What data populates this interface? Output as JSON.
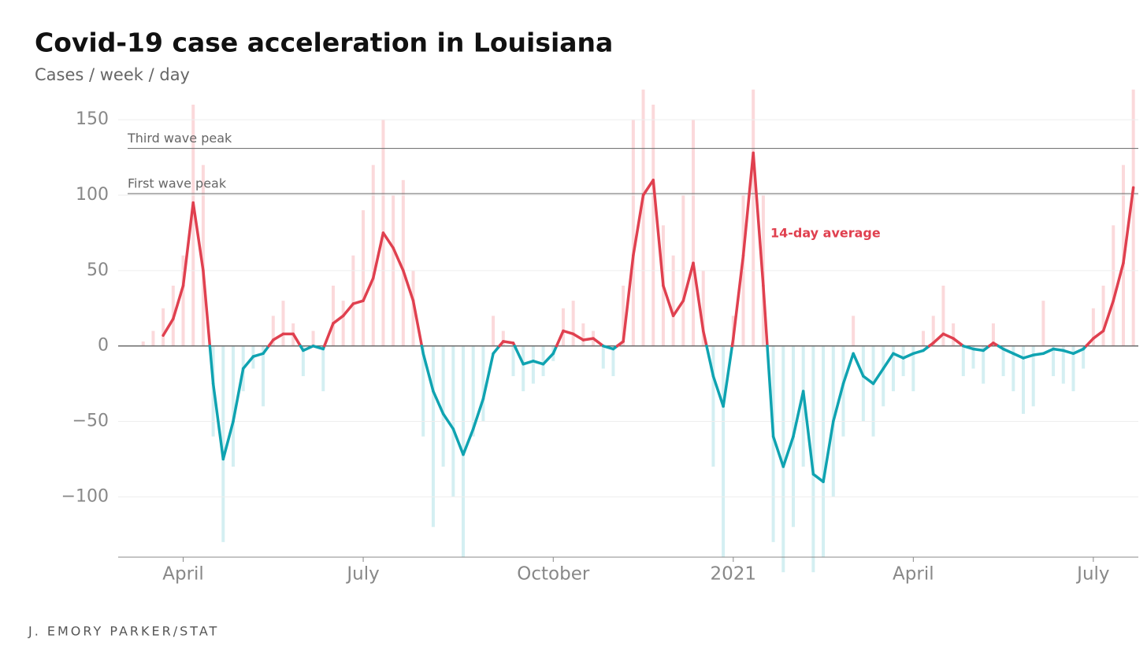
{
  "chart_data": {
    "type": "line",
    "title": "Covid-19 case acceleration in Louisiana",
    "subtitle": "Cases / week / day",
    "source": "J. EMORY PARKER/STAT",
    "categories": [
      null,
      null,
      null,
      null,
      null,
      null,
      "April",
      null,
      null,
      null,
      null,
      null,
      null,
      null,
      null,
      null,
      null,
      null,
      null,
      null,
      null,
      null,
      null,
      null,
      "July",
      null,
      null,
      null,
      null,
      null,
      null,
      null,
      null,
      null,
      null,
      null,
      null,
      null,
      null,
      null,
      null,
      null,
      null,
      "October",
      null,
      null,
      null,
      null,
      null,
      null,
      null,
      null,
      null,
      null,
      null,
      null,
      null,
      null,
      null,
      null,
      null,
      "2021",
      null,
      null,
      null,
      null,
      null,
      null,
      null,
      null,
      null,
      null,
      null,
      null,
      null,
      null,
      null,
      null,
      null,
      "April",
      null,
      null,
      null,
      null,
      null,
      null,
      null,
      null,
      null,
      null,
      null,
      null,
      null,
      null,
      null,
      null,
      null,
      "July",
      null,
      null,
      null,
      null
    ],
    "series": [
      {
        "name": "14-day average",
        "color": "#e0404f",
        "negative_color": "#0fa3b1",
        "values": [
          null,
          null,
          null,
          null,
          7,
          18,
          40,
          95,
          50,
          -25,
          -75,
          -50,
          -15,
          -7,
          -5,
          4,
          8,
          8,
          -3,
          0,
          -2,
          15,
          20,
          28,
          30,
          45,
          75,
          65,
          50,
          30,
          -5,
          -30,
          -45,
          -55,
          -72,
          -55,
          -35,
          -5,
          3,
          2,
          -12,
          -10,
          -12,
          -5,
          10,
          8,
          4,
          5,
          0,
          -2,
          3,
          60,
          100,
          110,
          40,
          20,
          30,
          55,
          10,
          -20,
          -40,
          5,
          60,
          128,
          40,
          -60,
          -80,
          -60,
          -30,
          -85,
          -90,
          -50,
          -25,
          -5,
          -20,
          -25,
          -15,
          -5,
          -8,
          -5,
          -3,
          2,
          8,
          5,
          0,
          -2,
          -3,
          2,
          -2,
          -5,
          -8,
          -6,
          -5,
          -2,
          -3,
          -5,
          -2,
          5,
          10,
          30,
          55,
          105
        ]
      },
      {
        "type": "bar",
        "color": "#fbd9db",
        "negative_color": "#d4eff2",
        "values": [
          null,
          null,
          3,
          10,
          25,
          40,
          60,
          160,
          120,
          -60,
          -130,
          -80,
          -30,
          -15,
          -40,
          20,
          30,
          15,
          -20,
          10,
          -30,
          40,
          30,
          60,
          90,
          120,
          150,
          100,
          110,
          50,
          -60,
          -120,
          -80,
          -100,
          -140,
          -60,
          -50,
          20,
          10,
          -20,
          -30,
          -25,
          -20,
          -10,
          25,
          30,
          15,
          10,
          -15,
          -20,
          40,
          150,
          170,
          160,
          80,
          60,
          100,
          150,
          50,
          -80,
          -140,
          20,
          100,
          170,
          100,
          -130,
          -150,
          -120,
          -80,
          -150,
          -140,
          -100,
          -60,
          20,
          -50,
          -60,
          -40,
          -30,
          -20,
          -30,
          10,
          20,
          40,
          15,
          -20,
          -15,
          -25,
          15,
          -20,
          -30,
          -45,
          -40,
          30,
          -20,
          -25,
          -30,
          -15,
          25,
          40,
          80,
          120,
          170
        ]
      }
    ],
    "reference_lines": [
      {
        "label": "Third wave peak",
        "value": 131
      },
      {
        "label": "First wave peak",
        "value": 101
      }
    ],
    "ylim": [
      -140,
      160
    ],
    "yticks": [
      {
        "value": -100,
        "label": "−100"
      },
      {
        "value": -50,
        "label": "−50"
      },
      0,
      50,
      100,
      150
    ],
    "grid": true
  }
}
